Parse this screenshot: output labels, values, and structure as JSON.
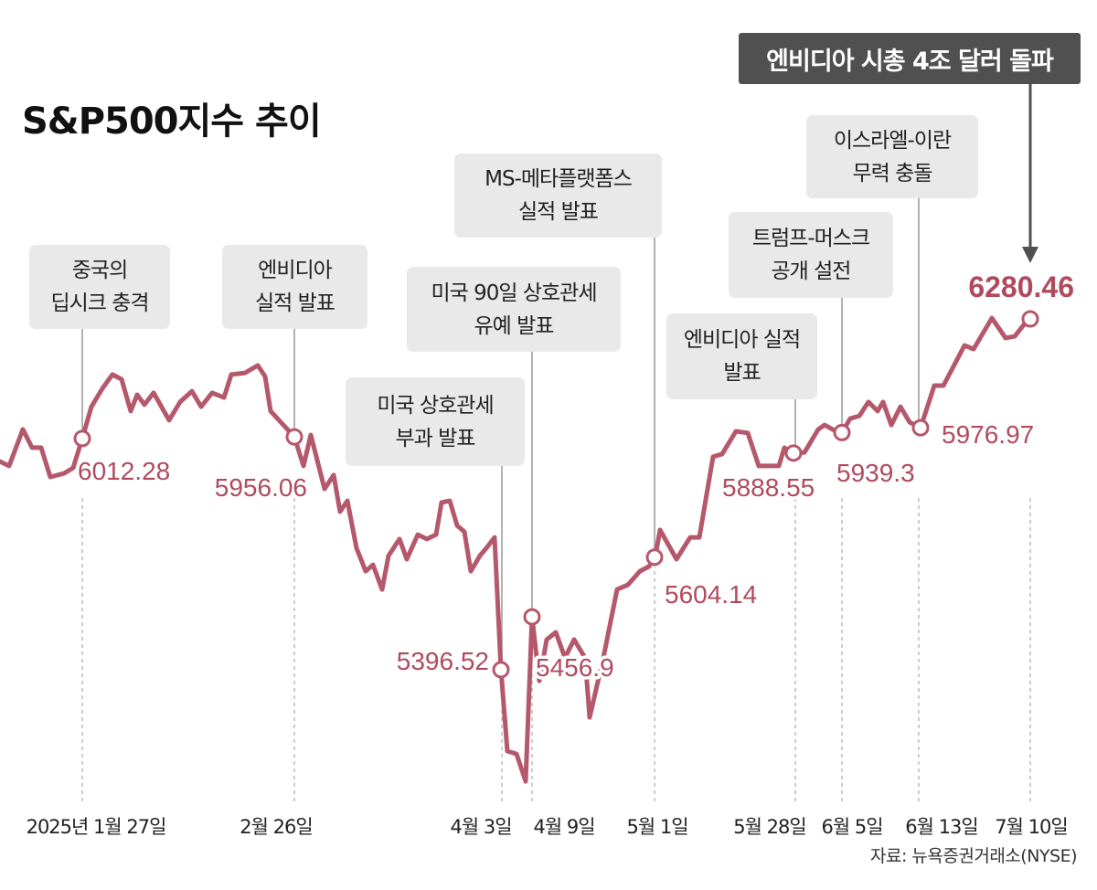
{
  "title": "S&P500지수 추이",
  "headline": "엔비디아 시총 4조 달러 돌파",
  "source": "자료: 뉴욕증권거래소(NYSE)",
  "colors": {
    "line": "#b5586b",
    "label": "#b04a5e",
    "box": "#e9e9e9",
    "headline_box": "#505050"
  },
  "chart_data": {
    "type": "line",
    "title": "S&P500지수 추이",
    "xlabel": "",
    "ylabel": "",
    "grid": false,
    "x_ticks": [
      "2025년 1월 27일",
      "2월 26일",
      "4월 3일",
      "4월 9일",
      "5월 1일",
      "5월 28일",
      "6월 5일",
      "6월 13일",
      "7월 10일"
    ],
    "series_values_approx": [
      5921,
      5910,
      6002,
      5956,
      5956,
      5882,
      5891,
      5905,
      5979,
      6059,
      6105,
      6140,
      6128,
      6048,
      6089,
      6064,
      6094,
      6025,
      6071,
      6098,
      6059,
      6094,
      6082,
      6140,
      6144,
      6163,
      6135,
      6048,
      5983,
      5910,
      5988,
      5852,
      5887,
      5795,
      5822,
      5703,
      5645,
      5661,
      5599,
      5684,
      5726,
      5675,
      5737,
      5726,
      5737,
      5818,
      5822,
      5760,
      5744,
      5645,
      5684,
      5703,
      5730,
      5397,
      5192,
      5185,
      5116,
      5530,
      5369,
      5473,
      5491,
      5427,
      5473,
      5427,
      5277,
      5427,
      5599,
      5611,
      5645,
      5657,
      5684,
      5749,
      5675,
      5730,
      5730,
      5933,
      5940,
      5997,
      5993,
      5910,
      5910,
      5956,
      5942,
      5944,
      6002,
      6013,
      5990,
      6029,
      6036,
      6071,
      6048,
      6071,
      6013,
      6059,
      6020,
      6006,
      6112,
      6112,
      6213,
      6204,
      6282,
      6232,
      6236,
      6280
    ],
    "events": [
      {
        "date": "2025년 1월 27일",
        "lines": [
          "중국의",
          "딥시크 충격"
        ],
        "value": "6012.28"
      },
      {
        "date": "2월 26일",
        "lines": [
          "엔비디아",
          "실적 발표"
        ],
        "value": "5956.06"
      },
      {
        "date": "4월 3일",
        "lines": [
          "미국 상호관세",
          "부과 발표"
        ],
        "value": "5396.52"
      },
      {
        "date": "4월 9일",
        "lines": [
          "미국 90일 상호관세",
          "유예 발표"
        ],
        "value": "5456.9"
      },
      {
        "date": "5월 1일",
        "lines": [
          "MS-메타플랫폼스",
          "실적 발표"
        ],
        "value": "5604.14"
      },
      {
        "date": "5월 28일",
        "lines": [
          "엔비디아 실적",
          "발표"
        ],
        "value": "5888.55"
      },
      {
        "date": "6월 5일",
        "lines": [
          "트럼프-머스크",
          "공개 설전"
        ],
        "value": "5939.3"
      },
      {
        "date": "6월 13일",
        "lines": [
          "이스라엘-이란",
          "무력 충돌"
        ],
        "value": "5976.97"
      },
      {
        "date": "7월 10일",
        "lines": [],
        "value": "6280.46"
      }
    ]
  }
}
